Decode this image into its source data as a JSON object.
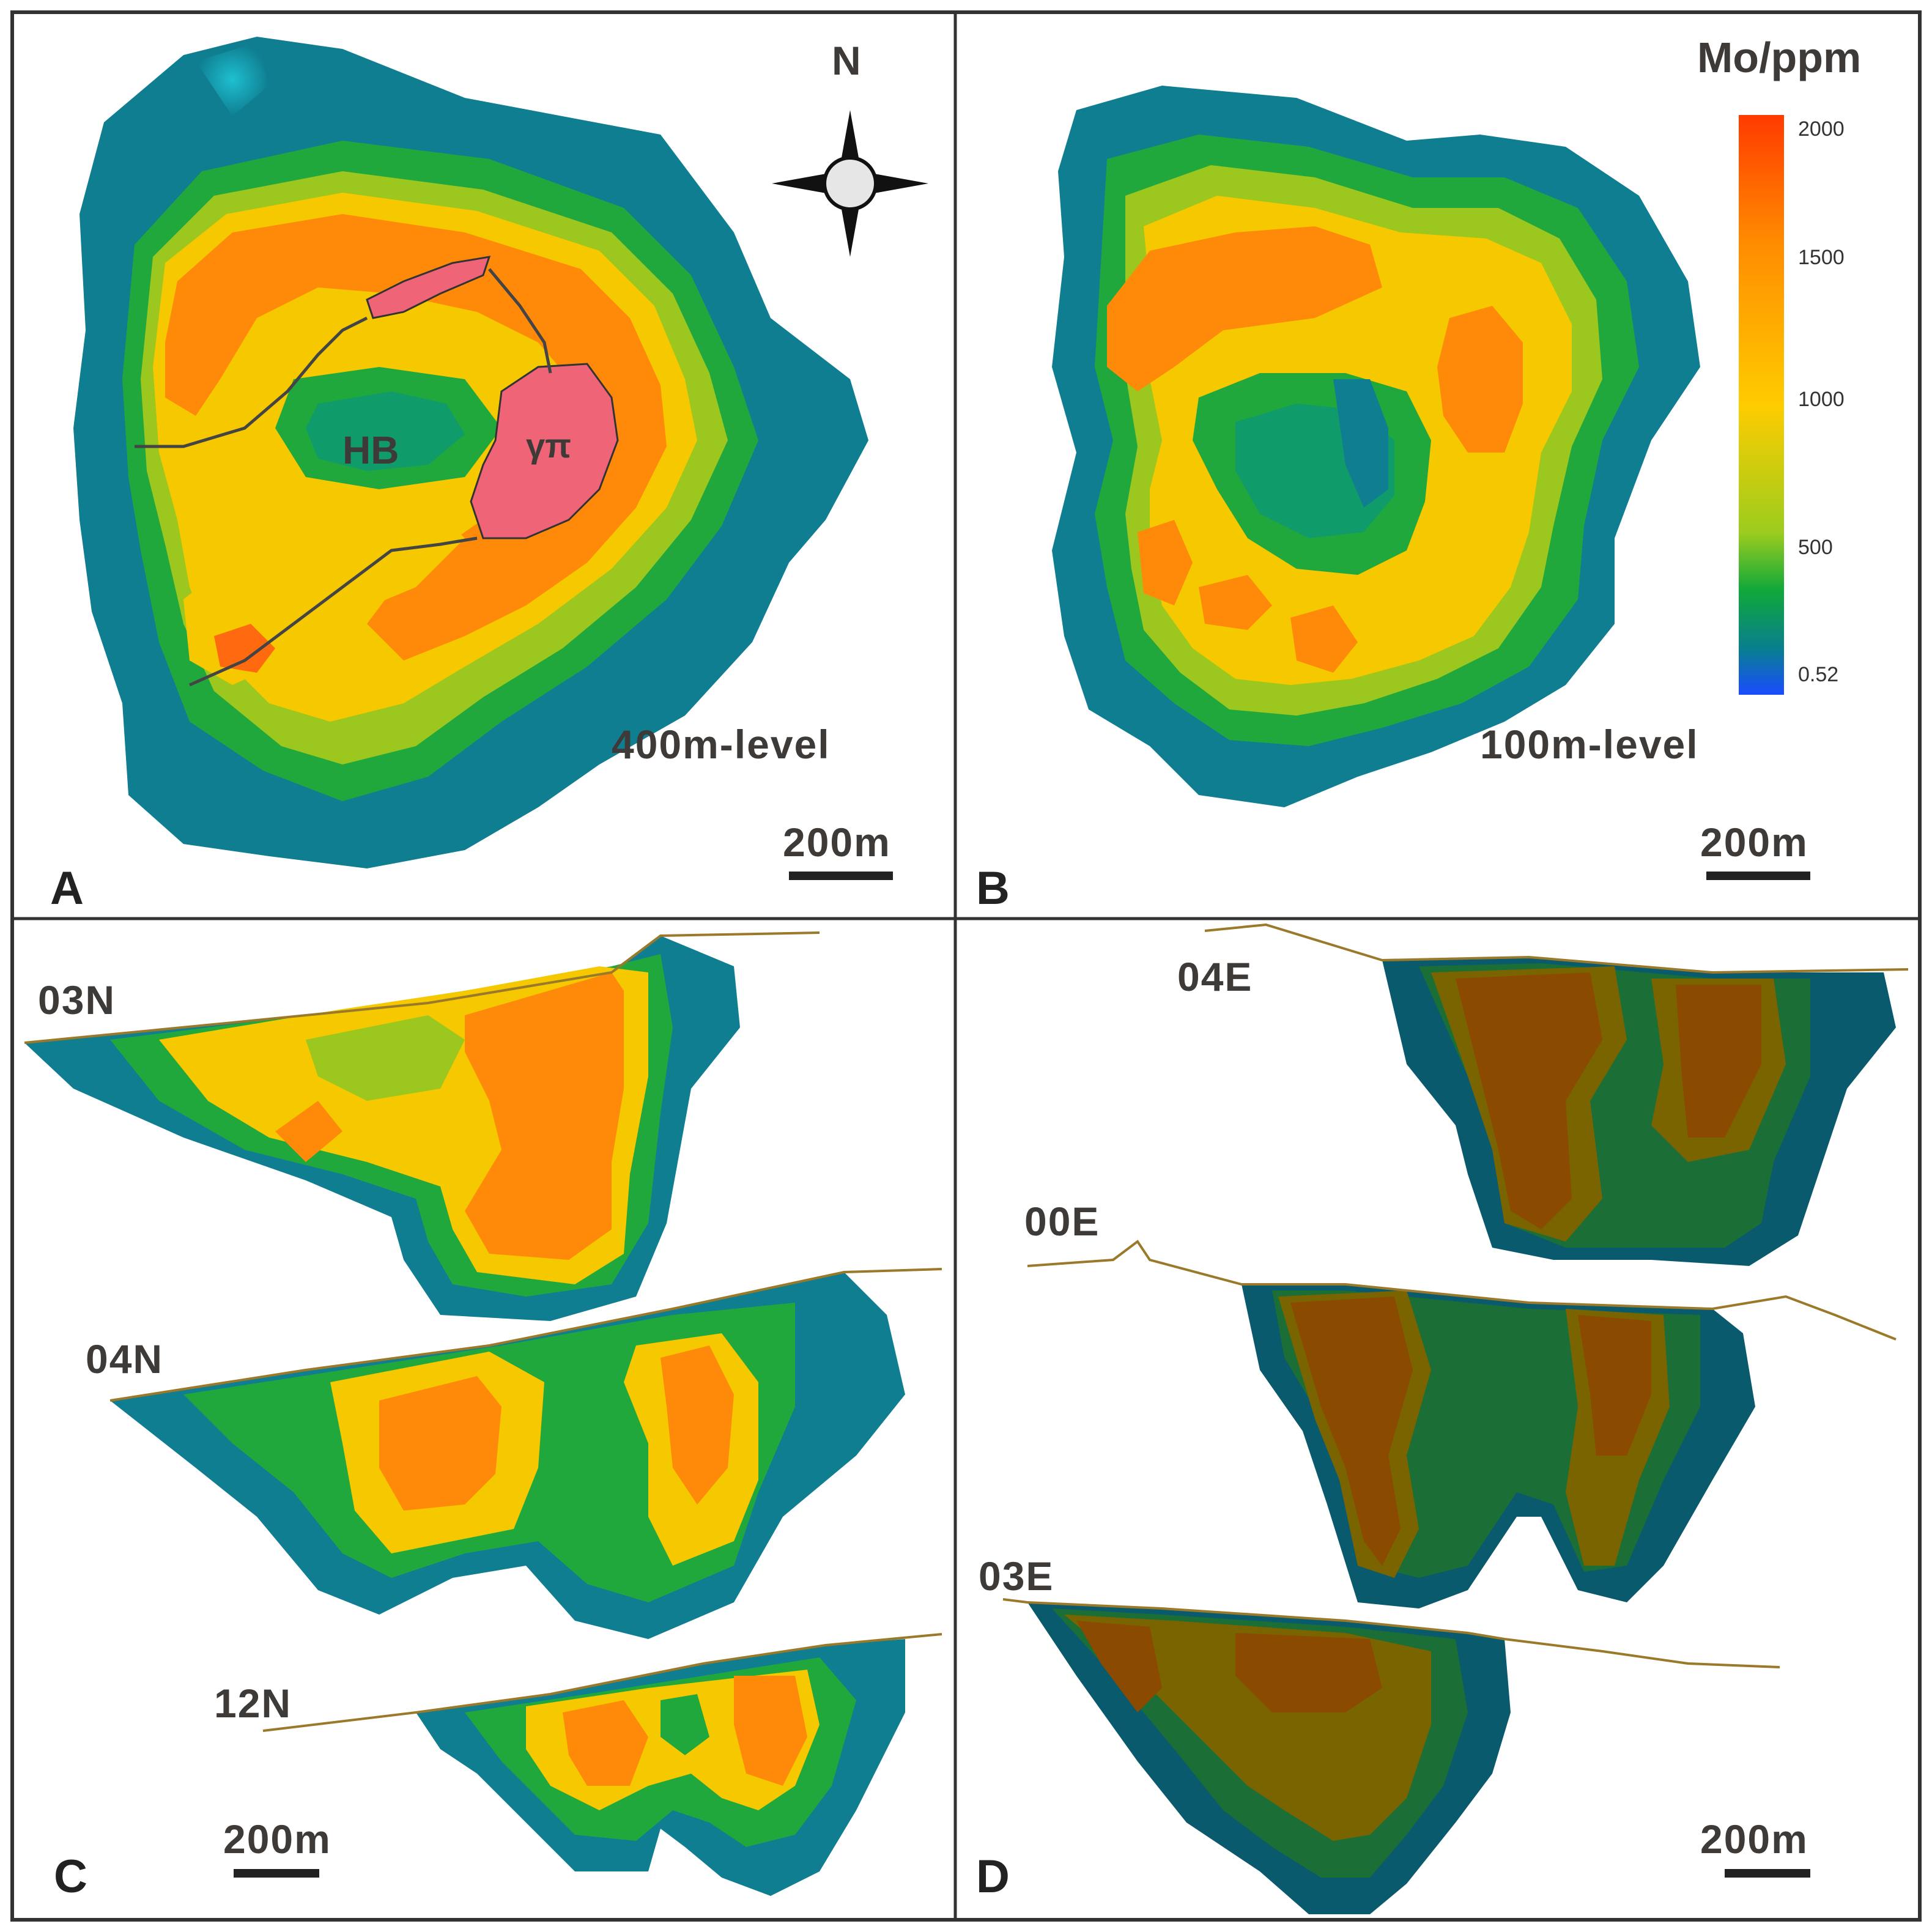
{
  "figure": {
    "panels": [
      {
        "letter": "A",
        "level_label": "400m-level",
        "scale_label": "200m",
        "north_label": "N",
        "unit_labels": [
          "HB",
          "γπ"
        ]
      },
      {
        "letter": "B",
        "level_label": "100m-level",
        "scale_label": "200m"
      },
      {
        "letter": "C",
        "scale_label": "200m",
        "sections": [
          "03N",
          "04N",
          "12N"
        ]
      },
      {
        "letter": "D",
        "scale_label": "200m",
        "sections": [
          "04E",
          "00E",
          "03E"
        ]
      }
    ],
    "legend": {
      "title": "Mo/ppm",
      "ticks": [
        "2000",
        "1500",
        "1000",
        "500",
        "0.52"
      ],
      "colors": [
        "#ff3a00",
        "#ff8c00",
        "#ffcc00",
        "#9ccc1e",
        "#10a83a",
        "#087f8e",
        "#1a4cff"
      ]
    },
    "contour_colors": {
      "outer": "#0f7e91",
      "teal_green": "#109b6a",
      "green": "#21a83d",
      "yellow_green": "#9cc71e",
      "yellow": "#f5c800",
      "light_orange": "#ffab00",
      "orange": "#ff8a0a",
      "deep_orange": "#ff6a10",
      "dark_section": "#6a4500",
      "intrusion": "#f06478",
      "surface_line": "#9a7a2a"
    }
  }
}
